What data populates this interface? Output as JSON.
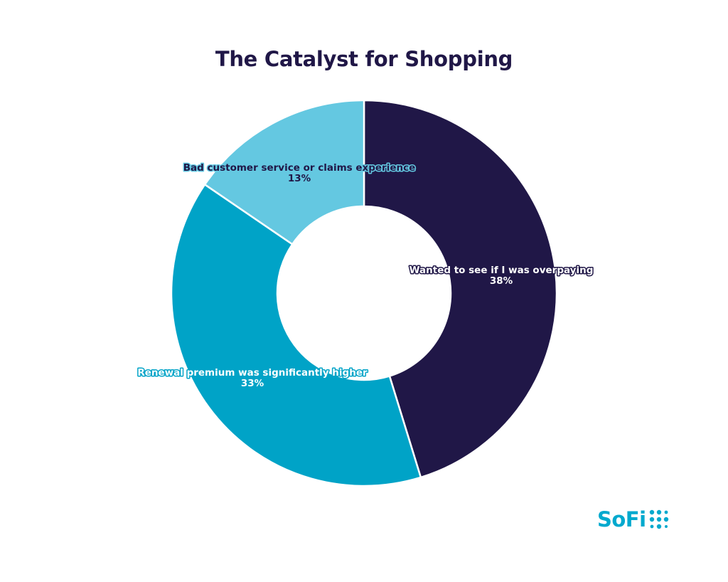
{
  "chart_data": {
    "type": "pie",
    "style": "donut",
    "title": "The Catalyst for Shopping",
    "slices": [
      {
        "label": "Wanted to see if I was overpaying",
        "value": 38,
        "display": "38%",
        "color": "#201747",
        "label_fill": "#ffffff",
        "label_stroke": "#201747"
      },
      {
        "label": "Renewal premium was significantly higher",
        "value": 33,
        "display": "33%",
        "color": "#00a3c7",
        "label_fill": "#ffffff",
        "label_stroke": "#00a3c7"
      },
      {
        "label": "Bad customer service or claims experience",
        "value": 13,
        "display": "13%",
        "color": "#64c8e1",
        "label_fill": "#201747",
        "label_stroke": "#64c8e1"
      }
    ],
    "legend": "none",
    "grid": false
  },
  "brand": {
    "logo_text": "SoFi",
    "logo_color": "#00a9ce",
    "logo_icon": "sofi-dots-icon"
  }
}
